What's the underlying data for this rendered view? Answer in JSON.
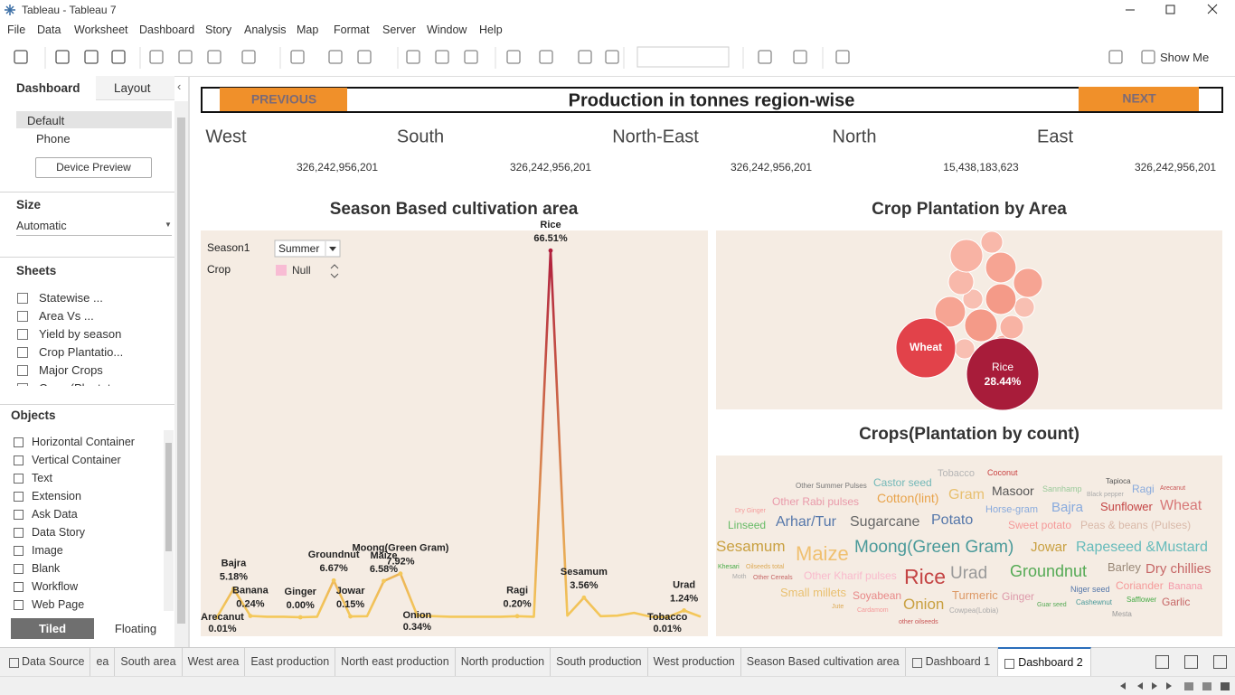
{
  "window": {
    "title": "Tableau - Tableau 7"
  },
  "menu": [
    "File",
    "Data",
    "Worksheet",
    "Dashboard",
    "Story",
    "Analysis",
    "Map",
    "Format",
    "Server",
    "Window",
    "Help"
  ],
  "toolbar": {
    "show_me": "Show Me"
  },
  "side_panel": {
    "tabs": [
      "Dashboard",
      "Layout"
    ],
    "devices": [
      "Default",
      "Phone"
    ],
    "device_preview": "Device Preview",
    "size_heading": "Size",
    "size_value": "Automatic",
    "sheets_heading": "Sheets",
    "sheets": [
      "Statewise ...",
      "Area Vs ...",
      "Yield by season",
      "Crop Plantatio...",
      "Major Crops",
      "Crops(Plantat..."
    ],
    "objects_heading": "Objects",
    "objects": [
      "Horizontal Container",
      "Vertical Container",
      "Text",
      "Extension",
      "Ask Data",
      "Data Story",
      "Image",
      "Blank",
      "Workflow",
      "Web Page"
    ],
    "layout_modes": [
      "Tiled",
      "Floating"
    ]
  },
  "dashboard": {
    "previous": "PREVIOUS",
    "next": "NEXT",
    "title": "Production in tonnes region-wise",
    "regions": [
      {
        "name": "West",
        "value": "326,242,956,201"
      },
      {
        "name": "South",
        "value": "326,242,956,201"
      },
      {
        "name": "North-East",
        "value": "326,242,956,201"
      },
      {
        "name": "North",
        "value": "15,438,183,623"
      },
      {
        "name": "East",
        "value": "326,242,956,201"
      }
    ],
    "filters": [
      {
        "label": "Season1",
        "value": "Summer"
      },
      {
        "label": "Crop",
        "value": "Null"
      }
    ]
  },
  "chart_data": [
    {
      "type": "line",
      "title": "Season Based cultivation area",
      "categories": [
        "Arecanut",
        "Bajra",
        "Banana",
        null,
        null,
        "Ginger",
        null,
        "Groundnut",
        "Jowar",
        null,
        "Maize",
        "Moong(Green Gram)",
        "Onion",
        null,
        null,
        null,
        null,
        null,
        "Ragi",
        null,
        "Rice",
        null,
        "Sesamum",
        null,
        null,
        null,
        null,
        "Tobacco",
        "Urad",
        null
      ],
      "values": [
        0.01,
        5.18,
        0.24,
        0.1,
        0.1,
        0.0,
        0.1,
        6.67,
        0.15,
        0.2,
        6.58,
        7.92,
        0.34,
        0.2,
        0.1,
        0.1,
        0.1,
        0.1,
        0.2,
        0.1,
        66.51,
        0.3,
        3.56,
        0.2,
        0.3,
        0.8,
        0.1,
        0.01,
        1.24,
        0.1
      ],
      "value_labels": [
        "0.01%",
        "5.18%",
        "0.24%",
        null,
        null,
        "0.00%",
        null,
        "6.67%",
        "0.15%",
        null,
        "6.58%",
        "7.92%",
        "0.34%",
        null,
        null,
        null,
        null,
        null,
        "0.20%",
        null,
        "66.51%",
        null,
        "3.56%",
        null,
        null,
        null,
        null,
        "0.01%",
        "1.24%",
        null
      ],
      "colors": [
        "#f4c85a",
        "#b01e3c"
      ]
    },
    {
      "type": "bubble",
      "title": "Crop Plantation by Area",
      "categories": [
        "Rice",
        "Wheat",
        null,
        null,
        null,
        null,
        null,
        null,
        null,
        null,
        null,
        null,
        null,
        null,
        null
      ],
      "values": [
        28.44,
        19.4,
        5.8,
        2.6,
        5.1,
        3.5,
        4.6,
        2.2,
        5.1,
        5.1,
        2.2,
        5.8,
        3.0,
        2.2,
        3.0
      ],
      "value_labels": [
        "28.44%",
        null,
        null,
        null,
        null,
        null,
        null,
        null,
        null,
        null,
        null,
        null,
        null,
        null,
        null
      ],
      "colors": [
        "#a81c3a",
        "#e2424a",
        "#f8b3a4",
        "#f8b8aa",
        "#f6a493",
        "#f8b8aa",
        "#f6a493",
        "#f8bfb2",
        "#f49a88",
        "#f6a493",
        "#f8bfb2",
        "#f49a88",
        "#f8b3a4",
        "#f8bfb2",
        "#f6a493"
      ]
    }
  ],
  "word_cloud": {
    "title": "Crops(Plantation by count)",
    "words": [
      {
        "text": "Tobacco",
        "color": "#b5b5b5"
      },
      {
        "text": "Coconut",
        "color": "#c94040"
      },
      {
        "text": "Other Summer Pulses",
        "color": "#777777"
      },
      {
        "text": "Castor seed",
        "color": "#72b8b8"
      },
      {
        "text": "Tapioca",
        "color": "#555555"
      },
      {
        "text": "Arecanut",
        "color": "#c95555"
      },
      {
        "text": "Cotton(lint)",
        "color": "#e8a34a"
      },
      {
        "text": "Gram",
        "color": "#e8c070"
      },
      {
        "text": "Masoor",
        "color": "#555555"
      },
      {
        "text": "Sannhamp",
        "color": "#99c999"
      },
      {
        "text": "Black pepper",
        "color": "#aaaaaa"
      },
      {
        "text": "Ragi",
        "color": "#88aadd"
      },
      {
        "text": "Dry Ginger",
        "color": "#f59999"
      },
      {
        "text": "Other Rabi pulses",
        "color": "#e99aaa"
      },
      {
        "text": "Horse-gram",
        "color": "#88aadd"
      },
      {
        "text": "Bajra",
        "color": "#88aadd"
      },
      {
        "text": "Sunflower",
        "color": "#c44444"
      },
      {
        "text": "Wheat",
        "color": "#d77777"
      },
      {
        "text": "Linseed",
        "color": "#66bb66"
      },
      {
        "text": "Arhar/Tur",
        "color": "#5577aa"
      },
      {
        "text": "Sugarcane",
        "color": "#666666"
      },
      {
        "text": "Potato",
        "color": "#5577aa"
      },
      {
        "text": "Sweet potato",
        "color": "#f59999"
      },
      {
        "text": "Peas & beans (Pulses)",
        "color": "#d9b9a9"
      },
      {
        "text": "Sesamum",
        "color": "#c9a040"
      },
      {
        "text": "Maize",
        "color": "#f0c070"
      },
      {
        "text": "Moong(Green Gram)",
        "color": "#4a9a9a"
      },
      {
        "text": "Jowar",
        "color": "#c9a040"
      },
      {
        "text": "Rapeseed &Mustard",
        "color": "#66bbbb"
      },
      {
        "text": "Khesari",
        "color": "#44aa44"
      },
      {
        "text": "Oilseeds total",
        "color": "#ddaa55"
      },
      {
        "text": "Moth",
        "color": "#aaaaaa"
      },
      {
        "text": "Other Cereals",
        "color": "#c66666"
      },
      {
        "text": "Other Kharif pulses",
        "color": "#f9b9cc"
      },
      {
        "text": "Rice",
        "color": "#c44444"
      },
      {
        "text": "Urad",
        "color": "#999999"
      },
      {
        "text": "Groundnut",
        "color": "#55aa55"
      },
      {
        "text": "Barley",
        "color": "#998877"
      },
      {
        "text": "Dry chillies",
        "color": "#c66666"
      },
      {
        "text": "Small millets",
        "color": "#e9c070"
      },
      {
        "text": "Soyabean",
        "color": "#e88888"
      },
      {
        "text": "Onion",
        "color": "#c9a040"
      },
      {
        "text": "Turmeric",
        "color": "#dd9966"
      },
      {
        "text": "Ginger",
        "color": "#dd99aa"
      },
      {
        "text": "Niger seed",
        "color": "#5577aa"
      },
      {
        "text": "Coriander",
        "color": "#f59999"
      },
      {
        "text": "Banana",
        "color": "#f599aa"
      },
      {
        "text": "Jute",
        "color": "#ddaa55"
      },
      {
        "text": "Cardamom",
        "color": "#f59999"
      },
      {
        "text": "Cowpea(Lobia)",
        "color": "#aaaaaa"
      },
      {
        "text": "Guar seed",
        "color": "#55aa55"
      },
      {
        "text": "Cashewnut",
        "color": "#4a9a9a"
      },
      {
        "text": "Safflower",
        "color": "#44aa44"
      },
      {
        "text": "Garlic",
        "color": "#c66666"
      },
      {
        "text": "other oilseeds",
        "color": "#c95555"
      },
      {
        "text": "Mesta",
        "color": "#999999"
      }
    ]
  },
  "sheet_tabs": [
    "Data Source",
    "ea",
    "South area",
    "West area",
    "East production",
    "North east production",
    "North production",
    "South production",
    "West production",
    "Season Based cultivation area",
    "Dashboard 1",
    "Dashboard 2"
  ]
}
